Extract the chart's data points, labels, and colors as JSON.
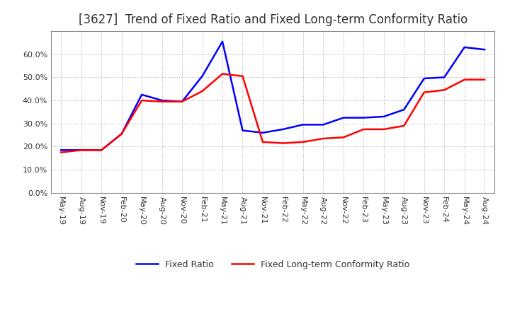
{
  "title": "[3627]  Trend of Fixed Ratio and Fixed Long-term Conformity Ratio",
  "x_labels": [
    "May-19",
    "Aug-19",
    "Nov-19",
    "Feb-20",
    "May-20",
    "Aug-20",
    "Nov-20",
    "Feb-21",
    "May-21",
    "Aug-21",
    "Nov-21",
    "Feb-22",
    "May-22",
    "Aug-22",
    "Nov-22",
    "Feb-23",
    "May-23",
    "Aug-23",
    "Nov-23",
    "Feb-24",
    "May-24",
    "Aug-24"
  ],
  "fixed_ratio": [
    18.5,
    18.5,
    18.5,
    25.5,
    42.5,
    40.0,
    39.5,
    50.5,
    65.5,
    27.0,
    26.0,
    27.5,
    29.5,
    29.5,
    32.5,
    32.5,
    33.0,
    36.0,
    49.5,
    50.0,
    63.0,
    62.0
  ],
  "fixed_lt_ratio": [
    17.5,
    18.5,
    18.5,
    25.5,
    40.0,
    39.5,
    39.5,
    44.0,
    51.5,
    50.5,
    22.0,
    21.5,
    22.0,
    23.5,
    24.0,
    27.5,
    27.5,
    29.0,
    43.5,
    44.5,
    49.0,
    49.0
  ],
  "fixed_ratio_color": "#0000FF",
  "fixed_lt_ratio_color": "#FF0000",
  "ylim": [
    0,
    70
  ],
  "yticks": [
    0.0,
    10.0,
    20.0,
    30.0,
    40.0,
    50.0,
    60.0
  ],
  "background_color": "#FFFFFF",
  "plot_bg_color": "#FFFFFF",
  "grid_color": "#AAAAAA",
  "spine_color": "#888888",
  "legend_fixed": "Fixed Ratio",
  "legend_fixed_lt": "Fixed Long-term Conformity Ratio",
  "title_fontsize": 12,
  "tick_fontsize": 8,
  "legend_fontsize": 9,
  "title_color": "#333333"
}
